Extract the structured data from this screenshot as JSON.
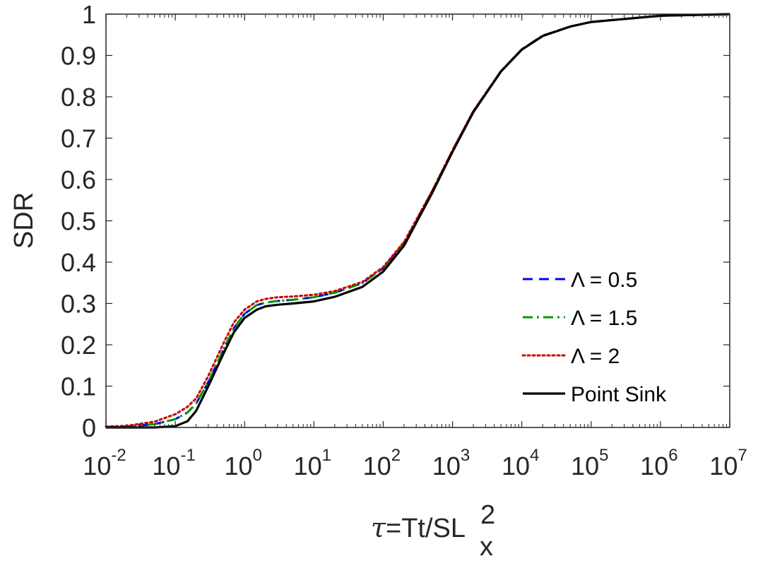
{
  "chart_data": {
    "type": "line",
    "title": "",
    "xlabel": {
      "prefix": "τ",
      "main": "=Tt/SL",
      "sup": "2",
      "sub": "x"
    },
    "ylabel": "SDR",
    "x_scale": "log",
    "xlim": [
      0.01,
      10000000
    ],
    "ylim": [
      0,
      1
    ],
    "x_ticks": [
      {
        "base": "10",
        "exp": "-2",
        "value": 0.01
      },
      {
        "base": "10",
        "exp": "-1",
        "value": 0.1
      },
      {
        "base": "10",
        "exp": "0",
        "value": 1
      },
      {
        "base": "10",
        "exp": "1",
        "value": 10
      },
      {
        "base": "10",
        "exp": "2",
        "value": 100
      },
      {
        "base": "10",
        "exp": "3",
        "value": 1000
      },
      {
        "base": "10",
        "exp": "4",
        "value": 10000
      },
      {
        "base": "10",
        "exp": "5",
        "value": 100000
      },
      {
        "base": "10",
        "exp": "6",
        "value": 1000000
      },
      {
        "base": "10",
        "exp": "7",
        "value": 10000000
      }
    ],
    "y_ticks": [
      "0",
      "0.1",
      "0.2",
      "0.3",
      "0.4",
      "0.5",
      "0.6",
      "0.7",
      "0.8",
      "0.9",
      "1"
    ],
    "grid": false,
    "legend_position": "bottom-right",
    "x": [
      0.01,
      0.02,
      0.05,
      0.1,
      0.15,
      0.2,
      0.3,
      0.5,
      0.7,
      1,
      1.5,
      2,
      3,
      5,
      10,
      20,
      50,
      100,
      200,
      500,
      1000,
      2000,
      5000,
      10000,
      20000,
      50000,
      100000,
      1000000,
      10000000
    ],
    "series": [
      {
        "name": "Λ = 0.5",
        "color": "#0000ff",
        "dash": "dash",
        "values": [
          0.001,
          0.002,
          0.008,
          0.02,
          0.036,
          0.058,
          0.11,
          0.19,
          0.24,
          0.275,
          0.296,
          0.302,
          0.306,
          0.309,
          0.315,
          0.326,
          0.349,
          0.385,
          0.447,
          0.569,
          0.67,
          0.765,
          0.862,
          0.915,
          0.948,
          0.97,
          0.981,
          0.996,
          1.0
        ]
      },
      {
        "name": "Λ = 1.5",
        "color": "#009900",
        "dash": "dashdot",
        "values": [
          0.001,
          0.002,
          0.008,
          0.02,
          0.036,
          0.058,
          0.11,
          0.19,
          0.24,
          0.275,
          0.296,
          0.302,
          0.306,
          0.309,
          0.315,
          0.326,
          0.349,
          0.385,
          0.447,
          0.569,
          0.67,
          0.765,
          0.862,
          0.915,
          0.948,
          0.97,
          0.981,
          0.996,
          1.0
        ]
      },
      {
        "name": "Λ = 2",
        "color": "#cc0000",
        "dash": "dot",
        "values": [
          0.002,
          0.004,
          0.014,
          0.032,
          0.05,
          0.07,
          0.125,
          0.205,
          0.254,
          0.285,
          0.305,
          0.311,
          0.315,
          0.317,
          0.321,
          0.33,
          0.352,
          0.388,
          0.449,
          0.57,
          0.671,
          0.766,
          0.862,
          0.915,
          0.948,
          0.97,
          0.981,
          0.996,
          1.0
        ]
      },
      {
        "name": "Point Sink",
        "color": "#000000",
        "dash": "solid",
        "values": [
          0.0,
          0.0,
          0.0,
          0.003,
          0.015,
          0.04,
          0.1,
          0.18,
          0.23,
          0.265,
          0.285,
          0.293,
          0.297,
          0.3,
          0.305,
          0.316,
          0.34,
          0.377,
          0.44,
          0.565,
          0.667,
          0.763,
          0.861,
          0.914,
          0.947,
          0.97,
          0.981,
          0.996,
          1.0
        ]
      }
    ]
  }
}
